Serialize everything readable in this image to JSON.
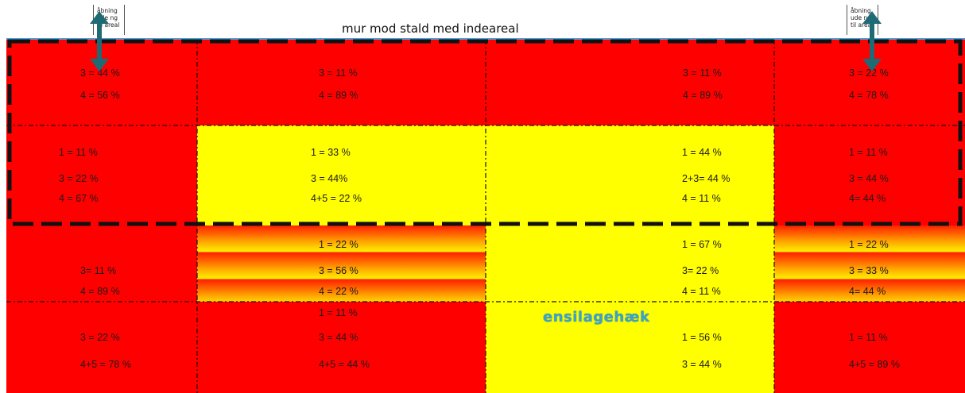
{
  "title": "mur mod stald med indeareal",
  "openings": {
    "left": "åbning ude ng til areal",
    "right": "åbning ude ng til areal"
  },
  "silage_label": "ensilagehæk",
  "rows": [
    [
      {
        "lines": [
          "3 = 44 %",
          "4 = 56 %"
        ]
      },
      {
        "lines": [
          "3 = 11 %",
          "4 = 89 %"
        ]
      },
      {
        "lines": [
          "3 = 11 %",
          "4 = 89 %"
        ]
      },
      {
        "lines": [
          "3 = 22 %",
          "4 = 78 %"
        ]
      }
    ],
    [
      {
        "lines": [
          "1 = 11 %",
          "3 = 22 %",
          "4 = 67 %"
        ]
      },
      {
        "lines": [
          "1 = 33 %",
          "3 = 44%",
          "4+5 = 22 %"
        ]
      },
      {
        "lines": [
          "1 = 44 %",
          "2+3= 44 %",
          "4 = 11 %"
        ]
      },
      {
        "lines": [
          "1 = 11 %",
          "3 = 44 %",
          "4= 44 %"
        ]
      }
    ],
    [
      {
        "lines": [
          "3= 11 %",
          "4 = 89 %"
        ]
      },
      {
        "lines": [
          "1 = 22 %",
          "3 = 56 %",
          "4 = 22 %"
        ]
      },
      {
        "lines": [
          "1 = 67 %",
          "3= 22 %",
          "4 = 11 %"
        ]
      },
      {
        "lines": [
          "1 = 22 %",
          "3 = 33 %",
          "4= 44 %"
        ]
      }
    ],
    [
      {
        "lines": [
          "3 = 22 %",
          "4+5 = 78 %"
        ]
      },
      {
        "lines": [
          "1 = 11 %",
          "3 = 44 %",
          "4+5 = 44 %"
        ]
      },
      {
        "lines": [
          "1 = 56 %",
          "3 = 44 %"
        ]
      },
      {
        "lines": [
          "1 = 11 %",
          "4+5 = 89 %"
        ]
      }
    ]
  ],
  "colors": {
    "red": "#ff0000",
    "yellow": "#ffff00",
    "arrow": "#1f6b75",
    "silage_text": "#3aa3c9"
  }
}
